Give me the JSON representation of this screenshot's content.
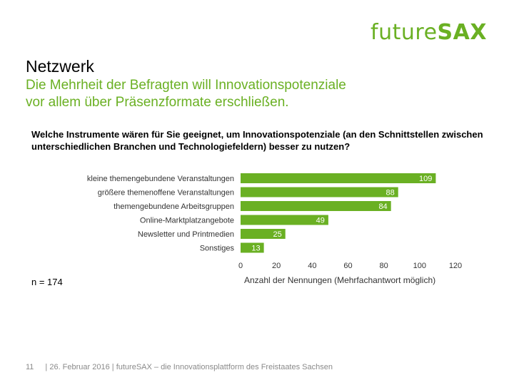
{
  "header": {
    "logo_light": "future",
    "logo_bold": "SAX"
  },
  "heading": {
    "title": "Netzwerk",
    "subtitle_line1": "Die Mehrheit der Befragten will Innovationspotenziale",
    "subtitle_line2": "vor allem über Präsenzformate erschließen."
  },
  "question": "Welche Instrumente wären für Sie geeignet, um Innovationspotenziale (an den Schnittstellen zwischen unterschiedlichen Branchen und Technologiefeldern) besser zu nutzen?",
  "sample_size": "n = 174",
  "footer": {
    "page": "11",
    "text": "| 26. Februar 2016 | futureSAX – die Innovationsplattform  des Freistaates Sachsen"
  },
  "colors": {
    "accent": "#6ab023"
  },
  "chart_data": {
    "type": "bar",
    "orientation": "horizontal",
    "categories": [
      "kleine themengebundene Veranstaltungen",
      "größere themenoffene Veranstaltungen",
      "themengebundene Arbeitsgruppen",
      "Online-Marktplatzangebote",
      "Newsletter und Printmedien",
      "Sonstiges"
    ],
    "values": [
      109,
      88,
      84,
      49,
      25,
      13
    ],
    "xlabel": "Anzahl der Nennungen  (Mehrfachantwort möglich)",
    "xlim": [
      0,
      120
    ],
    "xticks": [
      0,
      20,
      40,
      60,
      80,
      100,
      120
    ],
    "grid": false,
    "data_labels": true
  }
}
